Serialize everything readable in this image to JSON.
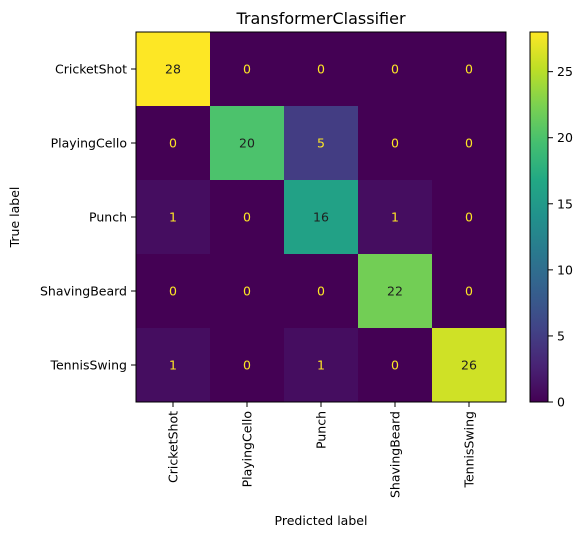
{
  "chart_data": {
    "type": "heatmap",
    "title": "TransformerClassifier",
    "xlabel": "Predicted label",
    "ylabel": "True label",
    "x_categories": [
      "CricketShot",
      "PlayingCello",
      "Punch",
      "ShavingBeard",
      "TennisSwing"
    ],
    "y_categories": [
      "CricketShot",
      "PlayingCello",
      "Punch",
      "ShavingBeard",
      "TennisSwing"
    ],
    "values": [
      [
        28,
        0,
        0,
        0,
        0
      ],
      [
        0,
        20,
        5,
        0,
        0
      ],
      [
        1,
        0,
        16,
        1,
        0
      ],
      [
        0,
        0,
        0,
        22,
        0
      ],
      [
        1,
        0,
        1,
        0,
        26
      ]
    ],
    "colormap": "viridis",
    "colorbar": {
      "range": [
        0,
        28
      ],
      "ticks": [
        0,
        5,
        10,
        15,
        20,
        25
      ]
    },
    "label_colors": {
      "on_dark": "#FDE725",
      "on_light": "#1f1f1f"
    }
  }
}
